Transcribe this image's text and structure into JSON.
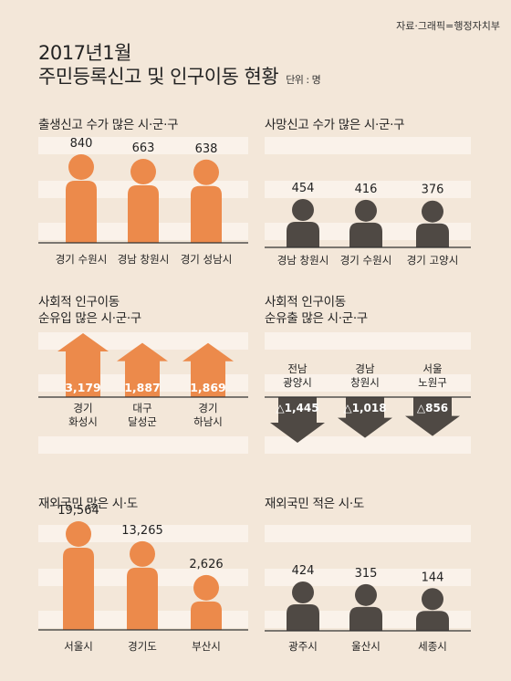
{
  "source": "자료·그래픽=행정자치부",
  "title_line1": "2017년1월",
  "title_line2": "주민등록신고 및 인구이동 현황",
  "unit": "단위 : 명",
  "colors": {
    "orange": "#ec8a4b",
    "dark": "#4f4944",
    "background": "#f3e7d9",
    "stripe": "#faf2ea"
  },
  "chart_data": [
    {
      "id": "births",
      "type": "bar",
      "title": "출생신고 수가 많은 시·군·구",
      "categories": [
        "경기 수원시",
        "경남 창원시",
        "경기 성남시"
      ],
      "values": [
        840,
        663,
        638
      ],
      "value_labels": [
        "840",
        "663",
        "638"
      ],
      "icon": "person-orange"
    },
    {
      "id": "deaths",
      "type": "bar",
      "title": "사망신고 수가 많은 시·군·구",
      "categories": [
        "경남 창원시",
        "경기 수원시",
        "경기 고양시"
      ],
      "values": [
        454,
        416,
        376
      ],
      "value_labels": [
        "454",
        "416",
        "376"
      ],
      "icon": "person-dark"
    },
    {
      "id": "inflow",
      "type": "bar",
      "title": "사회적 인구이동",
      "title_line2": "순유입 많은 시·군·구",
      "categories": [
        "경기\n화성시",
        "대구\n달성군",
        "경기\n하남시"
      ],
      "values": [
        3179,
        1887,
        1869
      ],
      "value_labels": [
        "3,179",
        "1,887",
        "1,869"
      ],
      "icon": "arrow-up-orange"
    },
    {
      "id": "outflow",
      "type": "bar",
      "title": "사회적 인구이동",
      "title_line2": "순유출 많은 시·군·구",
      "categories": [
        "전남\n광양시",
        "경남\n창원시",
        "서울\n노원구"
      ],
      "values": [
        -1445,
        -1018,
        -856
      ],
      "value_labels": [
        "△1,445",
        "△1,018",
        "△856"
      ],
      "icon": "arrow-down-dark"
    },
    {
      "id": "overseas_most",
      "type": "bar",
      "title": "재외국민 많은 시·도",
      "categories": [
        "서울시",
        "경기도",
        "부산시"
      ],
      "values": [
        19564,
        13265,
        2626
      ],
      "value_labels": [
        "19,564",
        "13,265",
        "2,626"
      ],
      "icon": "person-orange"
    },
    {
      "id": "overseas_least",
      "type": "bar",
      "title": "재외국민 적은 시·도",
      "categories": [
        "광주시",
        "울산시",
        "세종시"
      ],
      "values": [
        424,
        315,
        144
      ],
      "value_labels": [
        "424",
        "315",
        "144"
      ],
      "icon": "person-dark"
    }
  ]
}
